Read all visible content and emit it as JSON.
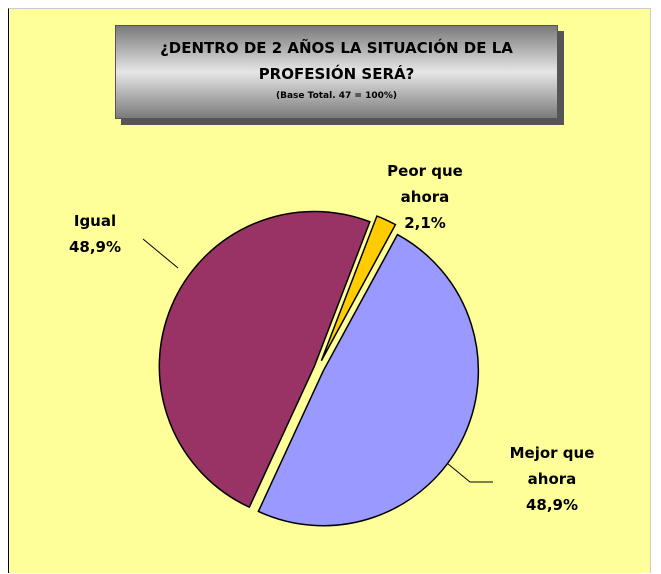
{
  "chart_data": {
    "type": "pie",
    "title": "¿DENTRO DE 2 AÑOS LA SITUACIÓN DE LA PROFESIÓN SERÁ?",
    "subtitle": "(Base Total. 47 = 100%)",
    "categories": [
      "Peor que ahora",
      "Mejor que ahora",
      "Igual"
    ],
    "values": [
      2.1,
      48.9,
      48.9
    ],
    "value_labels": [
      "2,1%",
      "48,9%",
      "48,9%"
    ],
    "colors": [
      "#ffcc00",
      "#9999ff",
      "#993366"
    ]
  }
}
